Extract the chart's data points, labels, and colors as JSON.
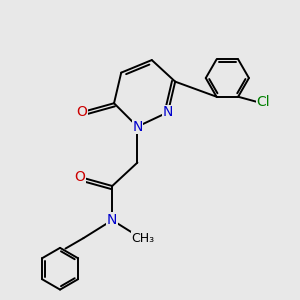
{
  "bg_color": "#e8e8e8",
  "atom_colors": {
    "C": "#000000",
    "N": "#0000cd",
    "O": "#cc0000",
    "Cl": "#008000",
    "H": "#000000"
  },
  "bond_color": "#000000",
  "bond_width": 1.4,
  "dbo": 0.09,
  "font_size": 10
}
